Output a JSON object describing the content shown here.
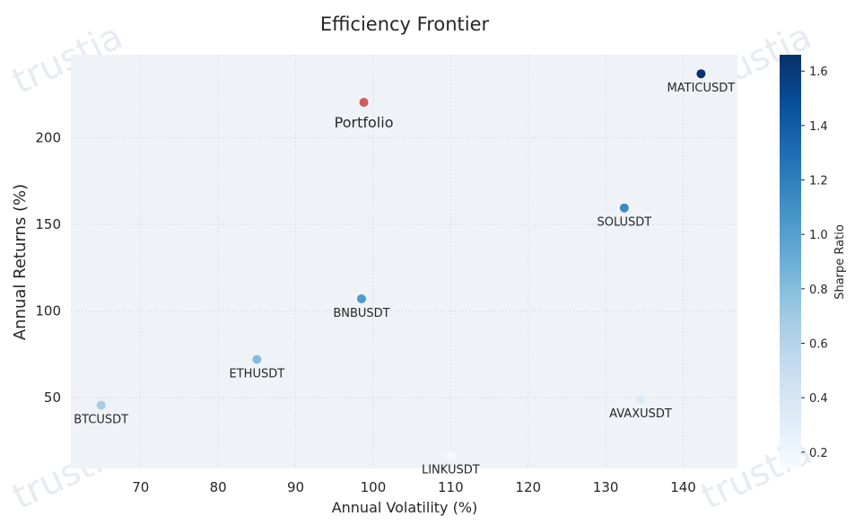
{
  "chart_data": {
    "type": "scatter",
    "title": "Efficiency Frontier",
    "xlabel": "Annual Volatility (%)",
    "ylabel": "Annual Returns (%)",
    "xlim": [
      61,
      147
    ],
    "ylim": [
      9,
      248
    ],
    "xticks": [
      70,
      80,
      90,
      100,
      110,
      120,
      130,
      140
    ],
    "yticks": [
      50,
      100,
      150,
      200
    ],
    "grid": true,
    "colorbar": {
      "label": "Sharpe Ratio",
      "range": [
        0.14,
        1.66
      ],
      "ticks": [
        0.2,
        0.4,
        0.6,
        0.8,
        1.0,
        1.2,
        1.4,
        1.6
      ],
      "tick_labels": [
        "0.2",
        "0.4",
        "0.6",
        "0.8",
        "1.0",
        "1.2",
        "1.4",
        "1.6"
      ],
      "colormap": [
        "#f7fbff",
        "#deebf7",
        "#c6dbef",
        "#9ecae1",
        "#6baed6",
        "#4292c6",
        "#2171b5",
        "#08519c",
        "#08306b"
      ]
    },
    "points": [
      {
        "name": "MATICUSDT",
        "x": 142.3,
        "y": 237.0,
        "sharpe": 1.65
      },
      {
        "name": "SOLUSDT",
        "x": 132.4,
        "y": 159.5,
        "sharpe": 1.13
      },
      {
        "name": "BNBUSDT",
        "x": 98.5,
        "y": 107.0,
        "sharpe": 1.03
      },
      {
        "name": "ETHUSDT",
        "x": 85.0,
        "y": 72.0,
        "sharpe": 0.8
      },
      {
        "name": "BTCUSDT",
        "x": 64.9,
        "y": 45.5,
        "sharpe": 0.67
      },
      {
        "name": "AVAXUSDT",
        "x": 134.5,
        "y": 49.0,
        "sharpe": 0.33
      },
      {
        "name": "LINKUSDT",
        "x": 110.0,
        "y": 16.5,
        "sharpe": 0.15
      }
    ],
    "portfolio": {
      "name": "Portfolio",
      "x": 98.8,
      "y": 220.5,
      "color": "#cd5c5c"
    }
  },
  "watermark": "trustia"
}
